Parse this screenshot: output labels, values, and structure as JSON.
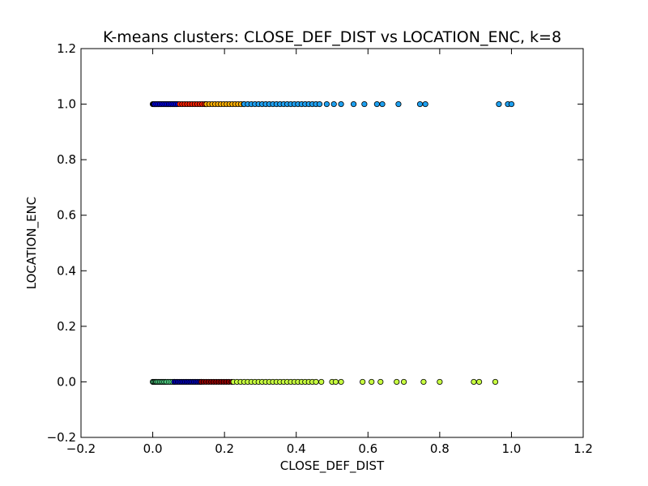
{
  "chart_data": {
    "type": "scatter",
    "title": "K-means clusters: CLOSE_DEF_DIST vs LOCATION_ENC, k=8",
    "xlabel": "CLOSE_DEF_DIST",
    "ylabel": "LOCATION_ENC",
    "xlim": [
      -0.2,
      1.2
    ],
    "ylim": [
      -0.2,
      1.2
    ],
    "xticks": [
      -0.2,
      0.0,
      0.2,
      0.4,
      0.6,
      0.8,
      1.0,
      1.2
    ],
    "yticks": [
      -0.2,
      0.0,
      0.2,
      0.4,
      0.6,
      0.8,
      1.0,
      1.2
    ],
    "xtick_labels": [
      "−0.2",
      "0.0",
      "0.2",
      "0.4",
      "0.6",
      "0.8",
      "1.0",
      "1.2"
    ],
    "ytick_labels": [
      "−0.2",
      "0.0",
      "0.2",
      "0.4",
      "0.6",
      "0.8",
      "1.0",
      "1.2"
    ],
    "grid": false,
    "marker_edge_color": "#000000",
    "series": [
      {
        "color": "#000080",
        "y": 1.0,
        "x": [
          0.0,
          0.002,
          0.004,
          0.006,
          0.008,
          0.01,
          0.013,
          0.016,
          0.019,
          0.022,
          0.026,
          0.03,
          0.034,
          0.038,
          0.042,
          0.046,
          0.05,
          0.054,
          0.058,
          0.062,
          0.066
        ]
      },
      {
        "color": "#0000ff",
        "y": 1.0,
        "x": [
          0.005,
          0.01,
          0.015,
          0.02,
          0.025,
          0.03,
          0.035,
          0.04,
          0.045,
          0.05,
          0.055,
          0.06,
          0.065,
          0.07
        ]
      },
      {
        "color": "#ff2000",
        "y": 1.0,
        "x": [
          0.075,
          0.082,
          0.089,
          0.096,
          0.103,
          0.11,
          0.117,
          0.124,
          0.131,
          0.138,
          0.145,
          0.15
        ]
      },
      {
        "color": "#ffb000",
        "y": 1.0,
        "x": [
          0.15,
          0.158,
          0.166,
          0.174,
          0.182,
          0.19,
          0.198,
          0.206,
          0.214,
          0.222,
          0.23,
          0.238,
          0.246,
          0.254
        ]
      },
      {
        "color": "#1ea0f0",
        "y": 1.0,
        "x": [
          0.255,
          0.265,
          0.275,
          0.285,
          0.295,
          0.305,
          0.315,
          0.325,
          0.335,
          0.345,
          0.355,
          0.365,
          0.375,
          0.385,
          0.395,
          0.405,
          0.415,
          0.425,
          0.435,
          0.445,
          0.455,
          0.465,
          0.485,
          0.505,
          0.525,
          0.56,
          0.59,
          0.625,
          0.64,
          0.685,
          0.745,
          0.76,
          0.965,
          0.99,
          1.0
        ]
      },
      {
        "color": "#60ffa0",
        "y": 0.0,
        "x": [
          0.0,
          0.003,
          0.006,
          0.009,
          0.012,
          0.016,
          0.02,
          0.024,
          0.028,
          0.032,
          0.036,
          0.04,
          0.045,
          0.05,
          0.055,
          0.06
        ]
      },
      {
        "color": "#0000d0",
        "y": 0.0,
        "x": [
          0.06,
          0.065,
          0.07,
          0.075,
          0.08,
          0.085,
          0.09,
          0.095,
          0.1,
          0.105,
          0.11,
          0.115,
          0.12,
          0.125,
          0.13,
          0.135
        ]
      },
      {
        "color": "#900000",
        "y": 0.0,
        "x": [
          0.135,
          0.142,
          0.149,
          0.156,
          0.163,
          0.17,
          0.177,
          0.184,
          0.191,
          0.198,
          0.205,
          0.212,
          0.22
        ]
      },
      {
        "color": "#c8ff40",
        "y": 0.0,
        "x": [
          0.225,
          0.235,
          0.245,
          0.255,
          0.265,
          0.275,
          0.285,
          0.295,
          0.305,
          0.315,
          0.325,
          0.335,
          0.345,
          0.355,
          0.365,
          0.375,
          0.385,
          0.395,
          0.405,
          0.415,
          0.425,
          0.435,
          0.445,
          0.455,
          0.47,
          0.5,
          0.51,
          0.525,
          0.585,
          0.61,
          0.635,
          0.68,
          0.7,
          0.755,
          0.8,
          0.895,
          0.91,
          0.955
        ]
      }
    ]
  }
}
